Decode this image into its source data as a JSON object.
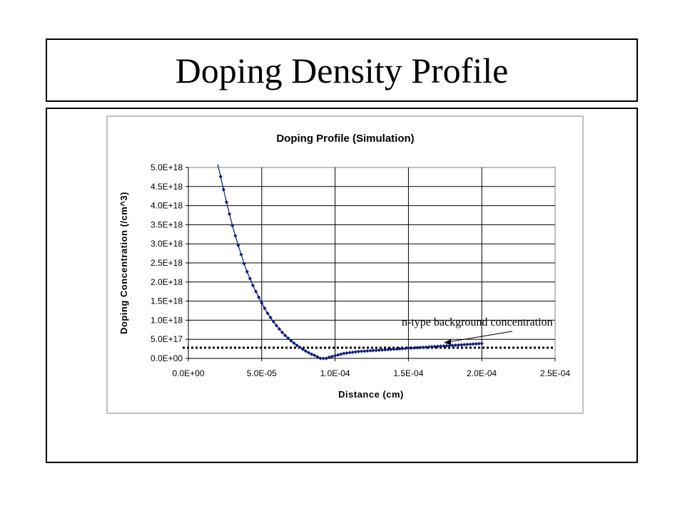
{
  "slide": {
    "title": "Doping Density Profile"
  },
  "chart_data": {
    "type": "scatter",
    "title": "Doping Profile (Simulation)",
    "xlabel": "Distance (cm)",
    "ylabel": "Doping Concentration (/cm^3)",
    "xlim": [
      0,
      0.00025
    ],
    "ylim": [
      0,
      5e+18
    ],
    "x_ticks": [
      "0.0E+00",
      "5.0E-05",
      "1.0E-04",
      "1.5E-04",
      "2.0E-04",
      "2.5E-04"
    ],
    "y_ticks": [
      "0.0E+00",
      "5.0E+17",
      "1.0E+18",
      "1.5E+18",
      "2.0E+18",
      "2.5E+18",
      "3.0E+18",
      "3.5E+18",
      "4.0E+18",
      "4.5E+18",
      "5.0E+18"
    ],
    "grid": true,
    "legend": false,
    "series_color": "#0a1a7a",
    "background_level": 2.8e+17,
    "annotation": "n-type background concentration",
    "series": [
      {
        "x": [
          2e-05,
          2.2e-05,
          2.4e-05,
          2.6e-05,
          2.8e-05,
          3e-05,
          3.2e-05,
          3.4e-05,
          3.6e-05,
          3.8e-05,
          4e-05,
          4.2e-05,
          4.4e-05,
          4.6e-05,
          4.8e-05,
          5e-05,
          5.2e-05,
          5.4e-05,
          5.6e-05,
          5.8e-05,
          6e-05,
          6.2e-05,
          6.4e-05,
          6.6e-05,
          6.8e-05,
          7e-05,
          7.2e-05,
          7.4e-05,
          7.6e-05,
          7.8e-05,
          8e-05,
          8.2e-05,
          8.4e-05,
          8.6e-05,
          8.8e-05,
          9e-05,
          9.2e-05,
          9.4e-05,
          9.6e-05,
          9.8e-05,
          0.0001,
          0.000102,
          0.000104,
          0.000106,
          0.000108,
          0.00011,
          0.000112,
          0.000114,
          0.000116,
          0.000118,
          0.00012,
          0.000122,
          0.000124,
          0.000126,
          0.000128,
          0.00013,
          0.000132,
          0.000134,
          0.000136,
          0.000138,
          0.00014,
          0.000142,
          0.000144,
          0.000146,
          0.000148,
          0.00015,
          0.000152,
          0.000154,
          0.000156,
          0.000158,
          0.00016,
          0.000162,
          0.000164,
          0.000166,
          0.000168,
          0.00017,
          0.000172,
          0.000174,
          0.000176,
          0.000178,
          0.00018,
          0.000182,
          0.000184,
          0.000186,
          0.000188,
          0.00019,
          0.000192,
          0.000194,
          0.000196,
          0.000198,
          0.0002
        ],
        "y": [
          5.08e+18,
          4.76e+18,
          4.42e+18,
          4.09e+18,
          3.78e+18,
          3.48e+18,
          3.21e+18,
          2.96e+18,
          2.72e+18,
          2.48e+18,
          2.27e+18,
          2.09e+18,
          1.91e+18,
          1.75e+18,
          1.6e+18,
          1.45e+18,
          1.31e+18,
          1.18e+18,
          1.07e+18,
          9.6e+17,
          8.6e+17,
          7.7e+17,
          6.8e+17,
          6e+17,
          5.3e+17,
          4.6e+17,
          4e+17,
          3.4e+17,
          2.9e+17,
          2.4e+17,
          1.9e+17,
          1.5e+17,
          1.1e+17,
          8e+16,
          4e+16,
          0.0,
          0.0,
          0.0,
          3e+16,
          5e+16,
          7e+16,
          9e+16,
          1.1e+17,
          1.3e+17,
          1.4e+17,
          1.5e+17,
          1.6e+17,
          1.7e+17,
          1.8e+17,
          1.85e+17,
          1.9e+17,
          1.95e+17,
          2e+17,
          2.05e+17,
          2.1e+17,
          2.15e+17,
          2.2e+17,
          2.25e+17,
          2.3e+17,
          2.35e+17,
          2.4e+17,
          2.45e+17,
          2.5e+17,
          2.55e+17,
          2.6e+17,
          2.65e+17,
          2.7e+17,
          2.75e+17,
          2.8e+17,
          2.85e+17,
          2.9e+17,
          2.95e+17,
          3e+17,
          3.05e+17,
          3.1e+17,
          3.15e+17,
          3.2e+17,
          3.25e+17,
          3.3e+17,
          3.35e+17,
          3.4e+17,
          3.45e+17,
          3.5e+17,
          3.55e+17,
          3.6e+17,
          3.65e+17,
          3.7e+17,
          3.75e+17,
          3.8e+17,
          3.85e+17,
          3.9e+17
        ]
      }
    ]
  }
}
